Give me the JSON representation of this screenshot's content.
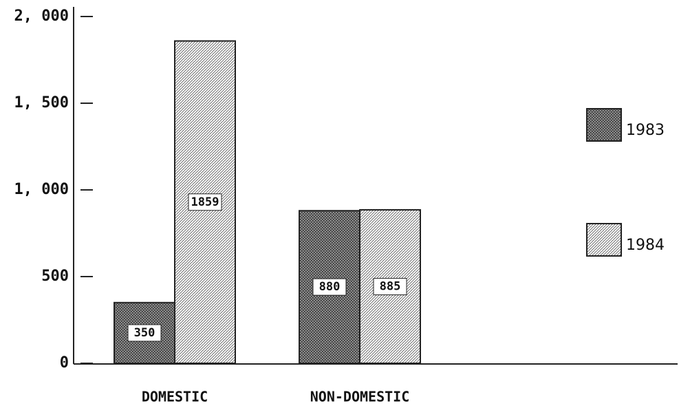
{
  "chart_data": {
    "type": "bar",
    "categories": [
      "DOMESTIC",
      "NON-DOMESTIC"
    ],
    "series": [
      {
        "name": "1983",
        "color": "#4a4a4a",
        "values": [
          350,
          880
        ]
      },
      {
        "name": "1984",
        "color": "#d8d8d8",
        "values": [
          1859,
          885
        ]
      }
    ],
    "ylim": [
      0,
      2000
    ],
    "yticks": [
      0,
      500,
      {
        "value": 1000,
        "label": "1, 000"
      },
      {
        "value": 1500,
        "label": "1, 500"
      },
      {
        "value": 2000,
        "label": "2, 000"
      }
    ],
    "legend": "right"
  }
}
